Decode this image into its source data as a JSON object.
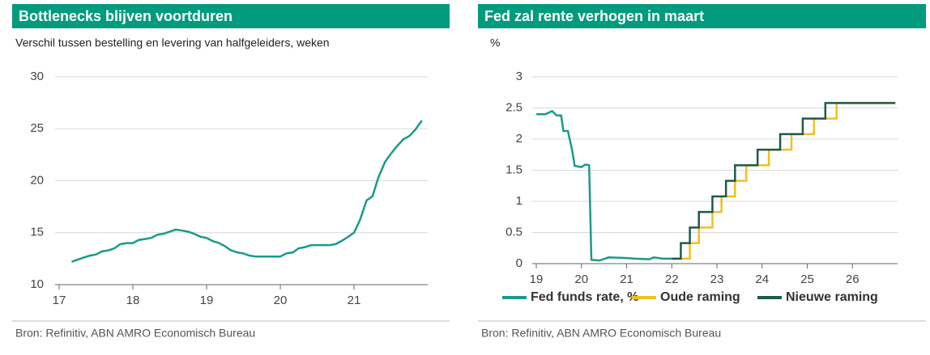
{
  "chart_data": [
    {
      "type": "line",
      "title": "Bottlenecks blijven voortduren",
      "subtitle": "Verschil tussen bestelling en levering van halfgeleiders, weken",
      "source": "Bron: Refinitiv, ABN AMRO Economisch Bureau",
      "color": "#1a9a8a",
      "x": [
        17.17,
        17.25,
        17.33,
        17.42,
        17.5,
        17.58,
        17.67,
        17.75,
        17.83,
        17.92,
        18.0,
        18.08,
        18.17,
        18.25,
        18.33,
        18.42,
        18.5,
        18.58,
        18.67,
        18.75,
        18.83,
        18.92,
        19.0,
        19.08,
        19.17,
        19.25,
        19.33,
        19.42,
        19.5,
        19.58,
        19.67,
        19.75,
        19.83,
        19.92,
        20.0,
        20.08,
        20.17,
        20.25,
        20.33,
        20.42,
        20.5,
        20.58,
        20.67,
        20.75,
        20.83,
        20.92,
        21.0,
        21.08,
        21.17,
        21.25,
        21.33,
        21.42,
        21.5,
        21.58,
        21.67,
        21.75,
        21.83,
        21.92
      ],
      "values": [
        12.2,
        12.4,
        12.6,
        12.8,
        12.9,
        13.2,
        13.3,
        13.5,
        13.9,
        14.0,
        14.0,
        14.3,
        14.4,
        14.5,
        14.8,
        14.9,
        15.1,
        15.3,
        15.2,
        15.1,
        14.9,
        14.6,
        14.5,
        14.2,
        14.0,
        13.7,
        13.3,
        13.1,
        13.0,
        12.8,
        12.7,
        12.7,
        12.7,
        12.7,
        12.7,
        13.0,
        13.1,
        13.5,
        13.6,
        13.8,
        13.8,
        13.8,
        13.8,
        13.9,
        14.2,
        14.6,
        15.0,
        16.2,
        18.1,
        18.5,
        20.3,
        21.8,
        22.6,
        23.3,
        24.0,
        24.3,
        24.9,
        25.8
      ],
      "xlim": [
        17,
        22
      ],
      "xticks": [
        17,
        18,
        19,
        20,
        21
      ],
      "ylim": [
        10,
        30
      ],
      "yticks": [
        10,
        15,
        20,
        25,
        30
      ],
      "grid": true
    },
    {
      "type": "line",
      "title": "Fed zal rente verhogen in maart",
      "y_label": "%",
      "source": "Bron: Refinitiv, ABN AMRO Economisch Bureau",
      "xlim": [
        19,
        27
      ],
      "xticks": [
        19,
        20,
        21,
        22,
        23,
        24,
        25,
        26
      ],
      "ylim": [
        0,
        3
      ],
      "yticks": [
        0,
        0.5,
        1,
        1.5,
        2,
        2.5,
        3
      ],
      "grid": true,
      "legend": "bottom",
      "series": [
        {
          "name": "Fed funds rate, %",
          "color": "#1a9a8a",
          "step": false,
          "x": [
            19,
            19.2,
            19.35,
            19.45,
            19.55,
            19.6,
            19.7,
            19.8,
            19.85,
            20.0,
            20.08,
            20.17,
            20.22,
            20.4,
            20.6,
            21.0,
            21.2,
            21.5,
            21.6,
            21.8,
            22.0
          ],
          "values": [
            2.4,
            2.4,
            2.45,
            2.38,
            2.38,
            2.13,
            2.13,
            1.8,
            1.57,
            1.55,
            1.59,
            1.58,
            0.06,
            0.05,
            0.1,
            0.09,
            0.08,
            0.07,
            0.1,
            0.08,
            0.08
          ]
        },
        {
          "name": "Oude raming",
          "color": "#f0c020",
          "step": true,
          "x": [
            22.0,
            22.4,
            22.6,
            22.9,
            23.1,
            23.4,
            23.65,
            24.15,
            24.65,
            25.15,
            25.65,
            26.95
          ],
          "values": [
            0.08,
            0.33,
            0.58,
            0.83,
            1.08,
            1.33,
            1.58,
            1.83,
            2.08,
            2.33,
            2.58,
            2.58
          ]
        },
        {
          "name": "Nieuwe raming",
          "color": "#1e5a4a",
          "step": true,
          "x": [
            22.0,
            22.2,
            22.4,
            22.6,
            22.9,
            23.2,
            23.4,
            23.9,
            24.4,
            24.9,
            25.4,
            26.95
          ],
          "values": [
            0.08,
            0.33,
            0.58,
            0.83,
            1.08,
            1.33,
            1.58,
            1.83,
            2.08,
            2.33,
            2.58,
            2.58
          ]
        }
      ]
    }
  ]
}
